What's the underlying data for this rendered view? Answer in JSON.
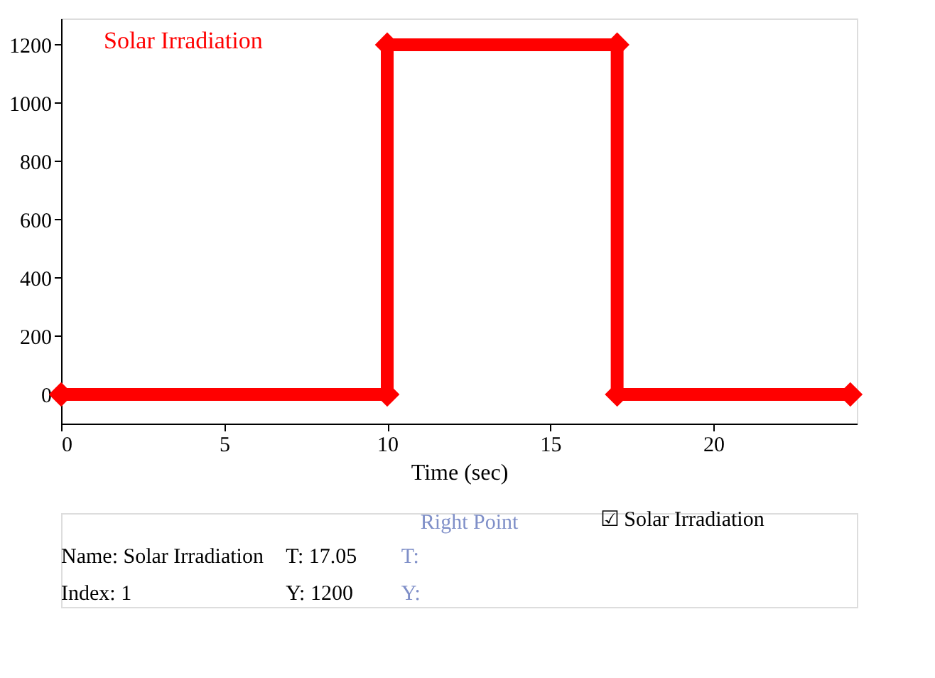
{
  "chart_data": {
    "type": "line",
    "xlabel": "Time (sec)",
    "series": [
      {
        "name": "Solar Irradiation",
        "color": "#ff0000",
        "x": [
          0,
          10,
          10,
          17.05,
          17.05,
          24.2
        ],
        "values": [
          0,
          0,
          1200,
          1200,
          0,
          0
        ]
      }
    ],
    "xlim": [
      0,
      24.4
    ],
    "xticks": [
      0,
      5,
      10,
      15,
      20
    ],
    "ylim": [
      -100,
      1290
    ],
    "yticks": [
      0,
      200,
      400,
      600,
      800,
      1000,
      1200
    ],
    "marker": "diamond",
    "line_style": "solid",
    "grid": false,
    "legend": "top left",
    "annotations": [
      "Name: Solar Irradiation",
      "Index: 1",
      "T: 17.05",
      "Y: 1200",
      "Right Point",
      "T:",
      "Y:",
      "☑ Solar Irradiation"
    ]
  }
}
